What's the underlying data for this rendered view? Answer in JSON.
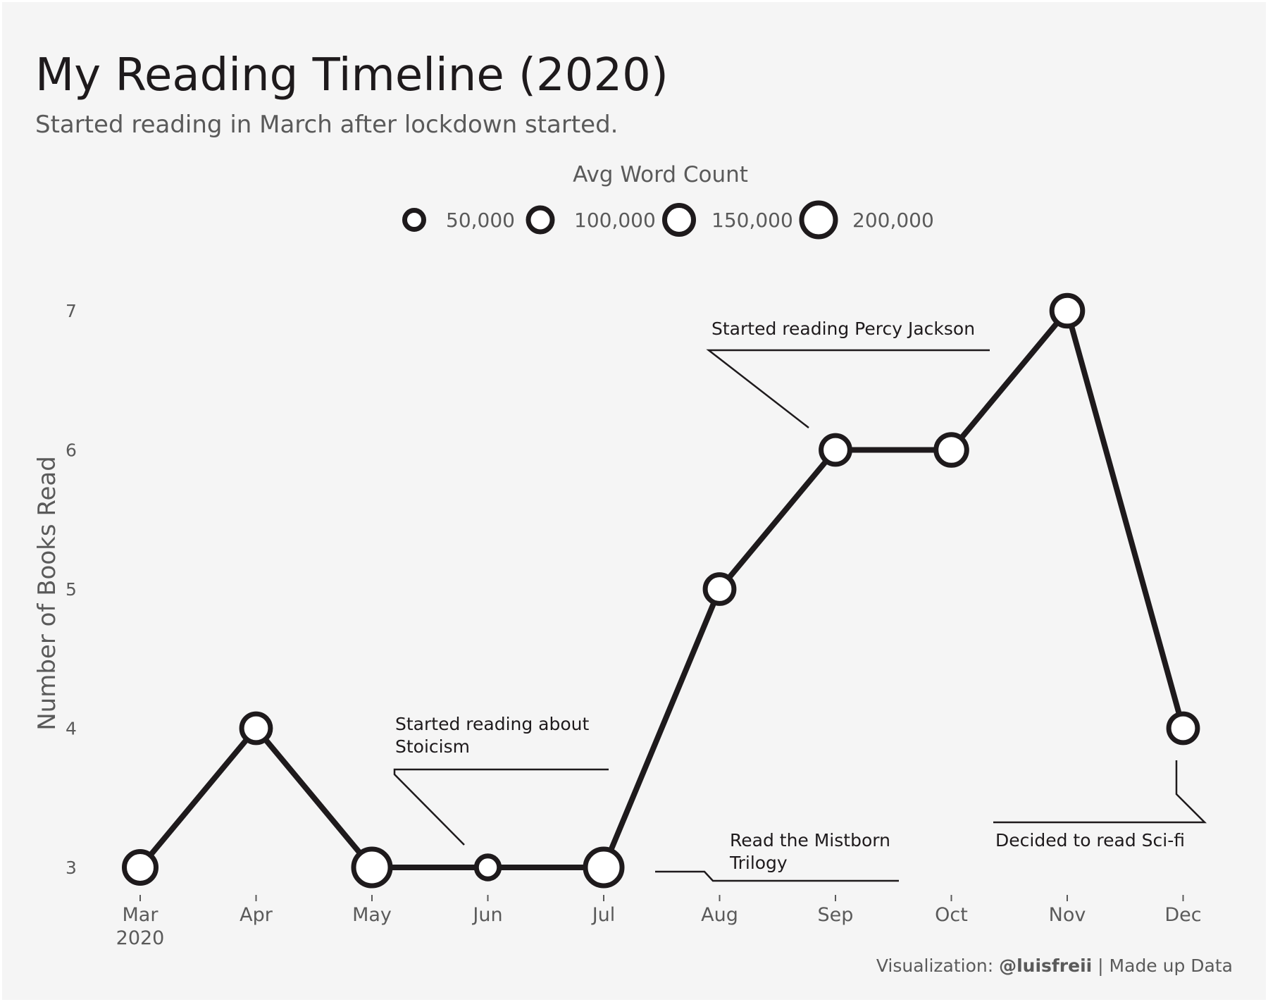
{
  "chart_data": {
    "type": "line",
    "title": "My Reading Timeline (2020)",
    "subtitle": "Started reading in March after lockdown started.",
    "ylabel": "Number of Books Read",
    "xlabel": "",
    "categories": [
      "Mar",
      "Apr",
      "May",
      "Jun",
      "Jul",
      "Aug",
      "Sep",
      "Oct",
      "Nov",
      "Dec"
    ],
    "year_label": "2020",
    "values": [
      3,
      4,
      3,
      3,
      3,
      5,
      6,
      6,
      7,
      4
    ],
    "avg_word_count": [
      150000,
      120000,
      200000,
      60000,
      200000,
      120000,
      120000,
      140000,
      140000,
      120000
    ],
    "ylim": [
      2.8,
      7.3
    ],
    "yticks": [
      3,
      4,
      5,
      6,
      7
    ],
    "size_legend": {
      "title": "Avg Word Count",
      "values": [
        50000,
        100000,
        150000,
        200000
      ],
      "labels": [
        "50,000",
        "100,000",
        "150,000",
        "200,000"
      ]
    },
    "annotations": [
      {
        "text": "Started reading Percy Jackson",
        "month": "Sep"
      },
      {
        "text": "Started reading about Stoicism",
        "month": "Jun"
      },
      {
        "text": "Read the Mistborn Trilogy",
        "month": "Aug"
      },
      {
        "text": "Decided to read Sci-fi",
        "month": "Dec"
      }
    ],
    "grid": false,
    "legend_position": "top"
  },
  "caption": {
    "prefix": "Visualization: ",
    "handle": "@luisfreii",
    "suffix": " | Made up Data"
  },
  "colors": {
    "background": "#f5f5f5",
    "line": "#1e1a1c",
    "marker_fill": "#ffffff",
    "text_dark": "#1e1a1c",
    "text_muted": "#5a5a5a"
  }
}
